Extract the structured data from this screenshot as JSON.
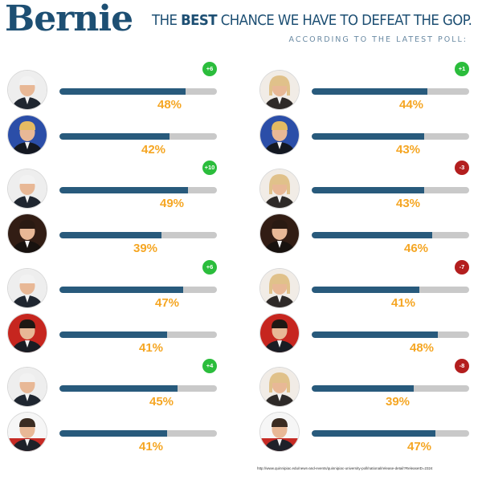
{
  "header": {
    "brand": "Bernie",
    "tagline_pre": "THE ",
    "tagline_bold": "BEST",
    "tagline_post": " CHANCE WE HAVE TO DEFEAT THE GOP.",
    "subtagline": "ACCORDING TO THE LATEST POLL:"
  },
  "colors": {
    "brand": "#1d4f73",
    "bar_fill": "#285a7c",
    "bar_track": "#c9c9c9",
    "percent": "#f5a623",
    "positive_badge": "#2bbd3c",
    "negative_badge": "#b31e1e"
  },
  "chart_data": {
    "type": "bar",
    "value_unit": "%",
    "matchups": [
      {
        "column": "left",
        "badge": "+6",
        "badge_type": "positive",
        "candidates": [
          {
            "avatar": "bernie",
            "value": 48,
            "label": "48%"
          },
          {
            "avatar": "trump",
            "value": 42,
            "label": "42%"
          }
        ]
      },
      {
        "column": "left",
        "badge": "+10",
        "badge_type": "positive",
        "candidates": [
          {
            "avatar": "bernie",
            "value": 49,
            "label": "49%"
          },
          {
            "avatar": "cruz",
            "value": 39,
            "label": "39%"
          }
        ]
      },
      {
        "column": "left",
        "badge": "+6",
        "badge_type": "positive",
        "candidates": [
          {
            "avatar": "bernie",
            "value": 47,
            "label": "47%"
          },
          {
            "avatar": "rubio",
            "value": 41,
            "label": "41%"
          }
        ]
      },
      {
        "column": "left",
        "badge": "+4",
        "badge_type": "positive",
        "candidates": [
          {
            "avatar": "bernie",
            "value": 45,
            "label": "45%"
          },
          {
            "avatar": "kasich",
            "value": 41,
            "label": "41%"
          }
        ]
      },
      {
        "column": "right",
        "badge": "+1",
        "badge_type": "positive",
        "candidates": [
          {
            "avatar": "hillary",
            "value": 44,
            "label": "44%"
          },
          {
            "avatar": "trump",
            "value": 43,
            "label": "43%"
          }
        ]
      },
      {
        "column": "right",
        "badge": "-3",
        "badge_type": "negative",
        "candidates": [
          {
            "avatar": "hillary",
            "value": 43,
            "label": "43%"
          },
          {
            "avatar": "cruz",
            "value": 46,
            "label": "46%"
          }
        ]
      },
      {
        "column": "right",
        "badge": "-7",
        "badge_type": "negative",
        "candidates": [
          {
            "avatar": "hillary",
            "value": 41,
            "label": "41%"
          },
          {
            "avatar": "rubio",
            "value": 48,
            "label": "48%"
          }
        ]
      },
      {
        "column": "right",
        "badge": "-8",
        "badge_type": "negative",
        "candidates": [
          {
            "avatar": "hillary",
            "value": 39,
            "label": "39%"
          },
          {
            "avatar": "kasich",
            "value": 47,
            "label": "47%"
          }
        ]
      }
    ]
  },
  "source": {
    "url": "http://www.quinnipiac.edu/news-and-events/quinnipiac-university-poll/national/release-detail?ReleaseID=2324"
  }
}
